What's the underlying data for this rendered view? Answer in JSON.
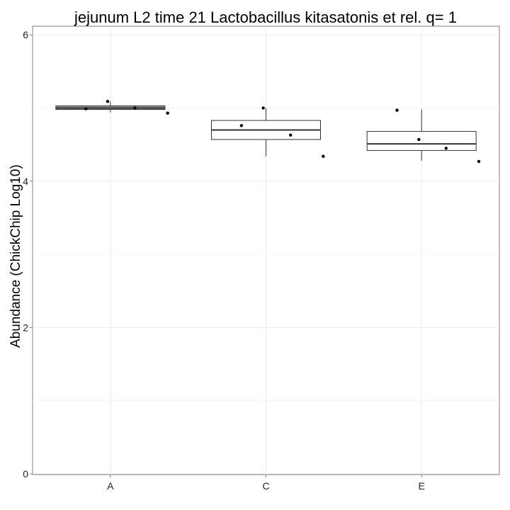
{
  "chart_data": {
    "type": "box",
    "title": "jejunum L2 time 21 Lactobacillus kitasatonis et rel. q= 1",
    "xlabel": "",
    "ylabel": "Abundance (ChickChip Log10)",
    "ylim": [
      0,
      6.1
    ],
    "yticks": [
      0,
      2,
      4,
      6
    ],
    "categories": [
      "A",
      "C",
      "E"
    ],
    "grid": true,
    "boxes": [
      {
        "category": "A",
        "whisker_low": 4.94,
        "q1": 4.98,
        "median": 5.0,
        "q3": 5.03,
        "whisker_high": 5.09,
        "points": [
          4.99,
          5.09,
          5.0,
          4.93
        ],
        "fill": "#999999"
      },
      {
        "category": "C",
        "whisker_low": 4.34,
        "q1": 4.57,
        "median": 4.7,
        "q3": 4.83,
        "whisker_high": 5.0,
        "points": [
          4.76,
          5.0,
          4.63,
          4.34
        ],
        "fill": "#ffffff"
      },
      {
        "category": "E",
        "whisker_low": 4.28,
        "q1": 4.42,
        "median": 4.51,
        "q3": 4.68,
        "whisker_high": 4.98,
        "points": [
          4.97,
          4.57,
          4.45,
          4.27
        ],
        "fill": "#ffffff"
      }
    ]
  }
}
